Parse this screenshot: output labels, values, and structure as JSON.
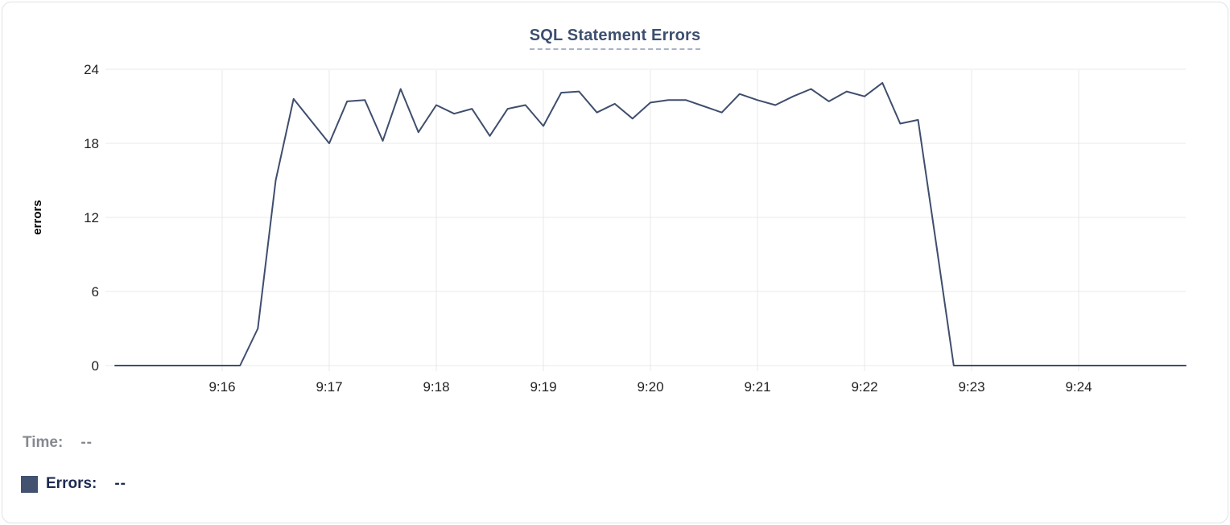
{
  "card": {
    "title": "SQL Statement Errors"
  },
  "legend": {
    "time_label": "Time:",
    "time_value": "--",
    "errors_label": "Errors:",
    "errors_value": "--",
    "swatch_color": "#42526f"
  },
  "colors": {
    "line": "#3f4e6d",
    "title": "#3d4f6e",
    "grid": "#e9e9e9",
    "tick_text": "#212121",
    "legend_gray": "#85898f",
    "legend_navy": "#1e2a52"
  },
  "chart_data": {
    "type": "line",
    "title": "SQL Statement Errors",
    "xlabel": "",
    "ylabel": "errors",
    "x_tick_labels": [
      "9:16",
      "9:17",
      "9:18",
      "9:19",
      "9:20",
      "9:21",
      "9:22",
      "9:23",
      "9:24"
    ],
    "y_ticks": [
      0,
      6,
      12,
      18,
      24
    ],
    "ylim": [
      0,
      24
    ],
    "x_range": [
      "9:15:00",
      "9:25:00"
    ],
    "grid": true,
    "legend_position": "bottom-left",
    "series": [
      {
        "name": "Errors",
        "color": "#3f4e6d",
        "x": [
          "9:15:00",
          "9:15:10",
          "9:15:20",
          "9:15:30",
          "9:15:40",
          "9:15:50",
          "9:16:00",
          "9:16:10",
          "9:16:20",
          "9:16:30",
          "9:16:40",
          "9:16:50",
          "9:17:00",
          "9:17:10",
          "9:17:20",
          "9:17:30",
          "9:17:40",
          "9:17:50",
          "9:18:00",
          "9:18:10",
          "9:18:20",
          "9:18:30",
          "9:18:40",
          "9:18:50",
          "9:19:00",
          "9:19:10",
          "9:19:20",
          "9:19:30",
          "9:19:40",
          "9:19:50",
          "9:20:00",
          "9:20:10",
          "9:20:20",
          "9:20:30",
          "9:20:40",
          "9:20:50",
          "9:21:00",
          "9:21:10",
          "9:21:20",
          "9:21:30",
          "9:21:40",
          "9:21:50",
          "9:22:00",
          "9:22:10",
          "9:22:20",
          "9:22:30",
          "9:22:40",
          "9:22:50",
          "9:23:00",
          "9:23:10",
          "9:23:20",
          "9:23:30",
          "9:23:40",
          "9:23:50",
          "9:24:00",
          "9:24:10",
          "9:24:20",
          "9:24:30",
          "9:24:40",
          "9:24:50",
          "9:25:00"
        ],
        "values": [
          0,
          0,
          0,
          0,
          0,
          0,
          0,
          0,
          3,
          15,
          21.6,
          19.8,
          18,
          21.4,
          21.5,
          18.2,
          22.4,
          18.9,
          21.1,
          20.4,
          20.8,
          18.6,
          20.8,
          21.1,
          19.4,
          22.1,
          22.2,
          20.5,
          21.2,
          20.0,
          21.3,
          21.5,
          21.5,
          21.0,
          20.5,
          22.0,
          21.5,
          21.1,
          21.8,
          22.4,
          21.4,
          22.2,
          21.8,
          22.9,
          19.6,
          19.9,
          10,
          0,
          0,
          0,
          0,
          0,
          0,
          0,
          0,
          0,
          0,
          0,
          0,
          0,
          0
        ]
      }
    ]
  }
}
